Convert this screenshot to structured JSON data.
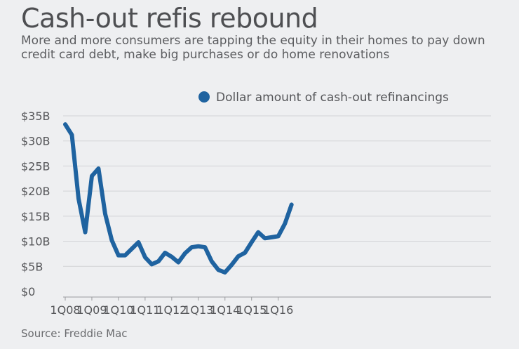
{
  "chart_data": {
    "type": "line",
    "title": "Cash-out refis rebound",
    "subtitle": "More and more consumers are tapping the equity in their homes to pay down credit card debt, make big purchases or do home renovations",
    "source": "Source: Freddie Mac",
    "legend": {
      "label": "Dollar amount of cash-out refinancings",
      "position": "top-right"
    },
    "color": "#1f63a0",
    "y_unit": "billions of dollars",
    "ylim": [
      0,
      35
    ],
    "y_ticks": [
      {
        "value": 0,
        "label": "$0"
      },
      {
        "value": 5,
        "label": "$5B"
      },
      {
        "value": 10,
        "label": "$10B"
      },
      {
        "value": 15,
        "label": "$15B"
      },
      {
        "value": 20,
        "label": "$20B"
      },
      {
        "value": 25,
        "label": "$25B"
      },
      {
        "value": 30,
        "label": "$30B"
      },
      {
        "value": 35,
        "label": "$35B"
      }
    ],
    "x_ticks": [
      "1Q08",
      "1Q09",
      "1Q10",
      "1Q11",
      "1Q12",
      "1Q13",
      "1Q14",
      "1Q15",
      "1Q16"
    ],
    "grid": true,
    "x": [
      "1Q08",
      "2Q08",
      "3Q08",
      "4Q08",
      "1Q09",
      "2Q09",
      "3Q09",
      "4Q09",
      "1Q10",
      "2Q10",
      "3Q10",
      "4Q10",
      "1Q11",
      "2Q11",
      "3Q11",
      "4Q11",
      "1Q12",
      "2Q12",
      "3Q12",
      "4Q12",
      "1Q13",
      "2Q13",
      "3Q13",
      "4Q13",
      "1Q14",
      "2Q14",
      "3Q14",
      "4Q14",
      "1Q15",
      "2Q15",
      "3Q15",
      "4Q15",
      "1Q16",
      "2Q16",
      "3Q16"
    ],
    "values": [
      33.3,
      31.2,
      18.5,
      11.8,
      23.0,
      24.5,
      15.5,
      10.2,
      7.2,
      7.2,
      8.5,
      9.8,
      6.8,
      5.4,
      6.0,
      7.7,
      6.9,
      5.8,
      7.6,
      8.8,
      9.0,
      8.8,
      6.0,
      4.3,
      3.8,
      5.3,
      7.0,
      7.7,
      9.8,
      11.8,
      10.6,
      10.8,
      11.0,
      13.5,
      17.3
    ]
  }
}
